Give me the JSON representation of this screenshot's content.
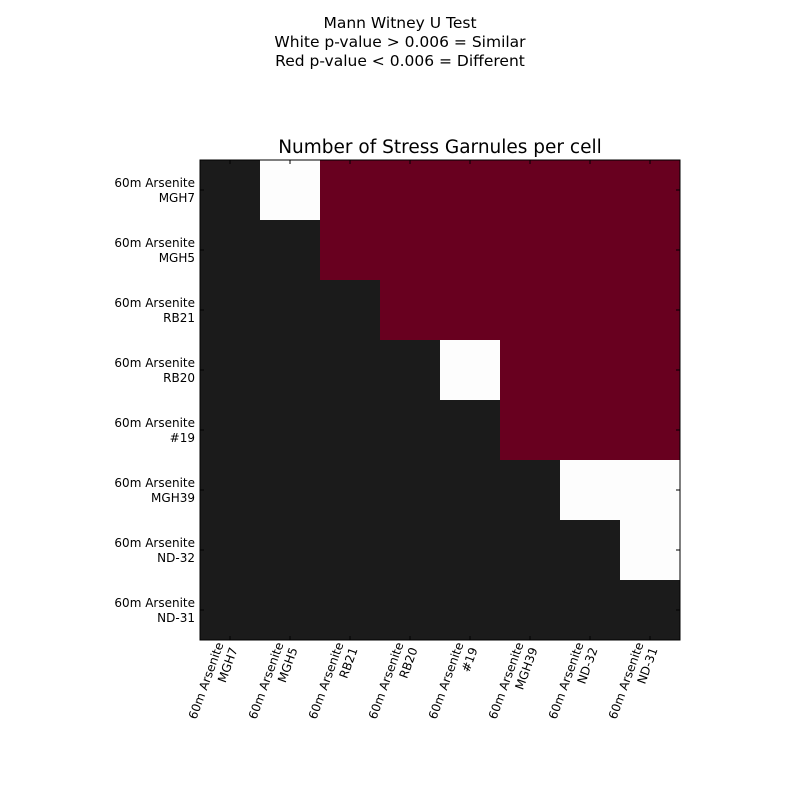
{
  "suptitle": [
    "Mann Witney U Test",
    "White p-value > 0.006 = Similar",
    "Red p-value < 0.006 = Different"
  ],
  "chart_data": {
    "type": "heatmap",
    "title": "Number of Stress Garnules per cell",
    "xlabel": "",
    "ylabel": "",
    "grid": false,
    "categories": [
      "60m Arsenite\nMGH7",
      "60m Arsenite\nMGH5",
      "60m Arsenite\nRB21",
      "60m Arsenite\nRB20",
      "60m Arsenite\n#19",
      "60m Arsenite\nMGH39",
      "60m Arsenite\nND-32",
      "60m Arsenite\nND-31"
    ],
    "cell_states": [
      "lower-triangle",
      "similar",
      "different"
    ],
    "colors": {
      "lower-triangle": "#1b1b1b",
      "similar": "#fdfdfd",
      "different": "#68001f"
    },
    "matrix": [
      [
        0,
        1,
        2,
        2,
        2,
        2,
        2,
        2
      ],
      [
        0,
        0,
        2,
        2,
        2,
        2,
        2,
        2
      ],
      [
        0,
        0,
        0,
        2,
        2,
        2,
        2,
        2
      ],
      [
        0,
        0,
        0,
        0,
        1,
        2,
        2,
        2
      ],
      [
        0,
        0,
        0,
        0,
        0,
        2,
        2,
        2
      ],
      [
        0,
        0,
        0,
        0,
        0,
        0,
        1,
        1
      ],
      [
        0,
        0,
        0,
        0,
        0,
        0,
        0,
        1
      ],
      [
        0,
        0,
        0,
        0,
        0,
        0,
        0,
        0
      ]
    ]
  }
}
